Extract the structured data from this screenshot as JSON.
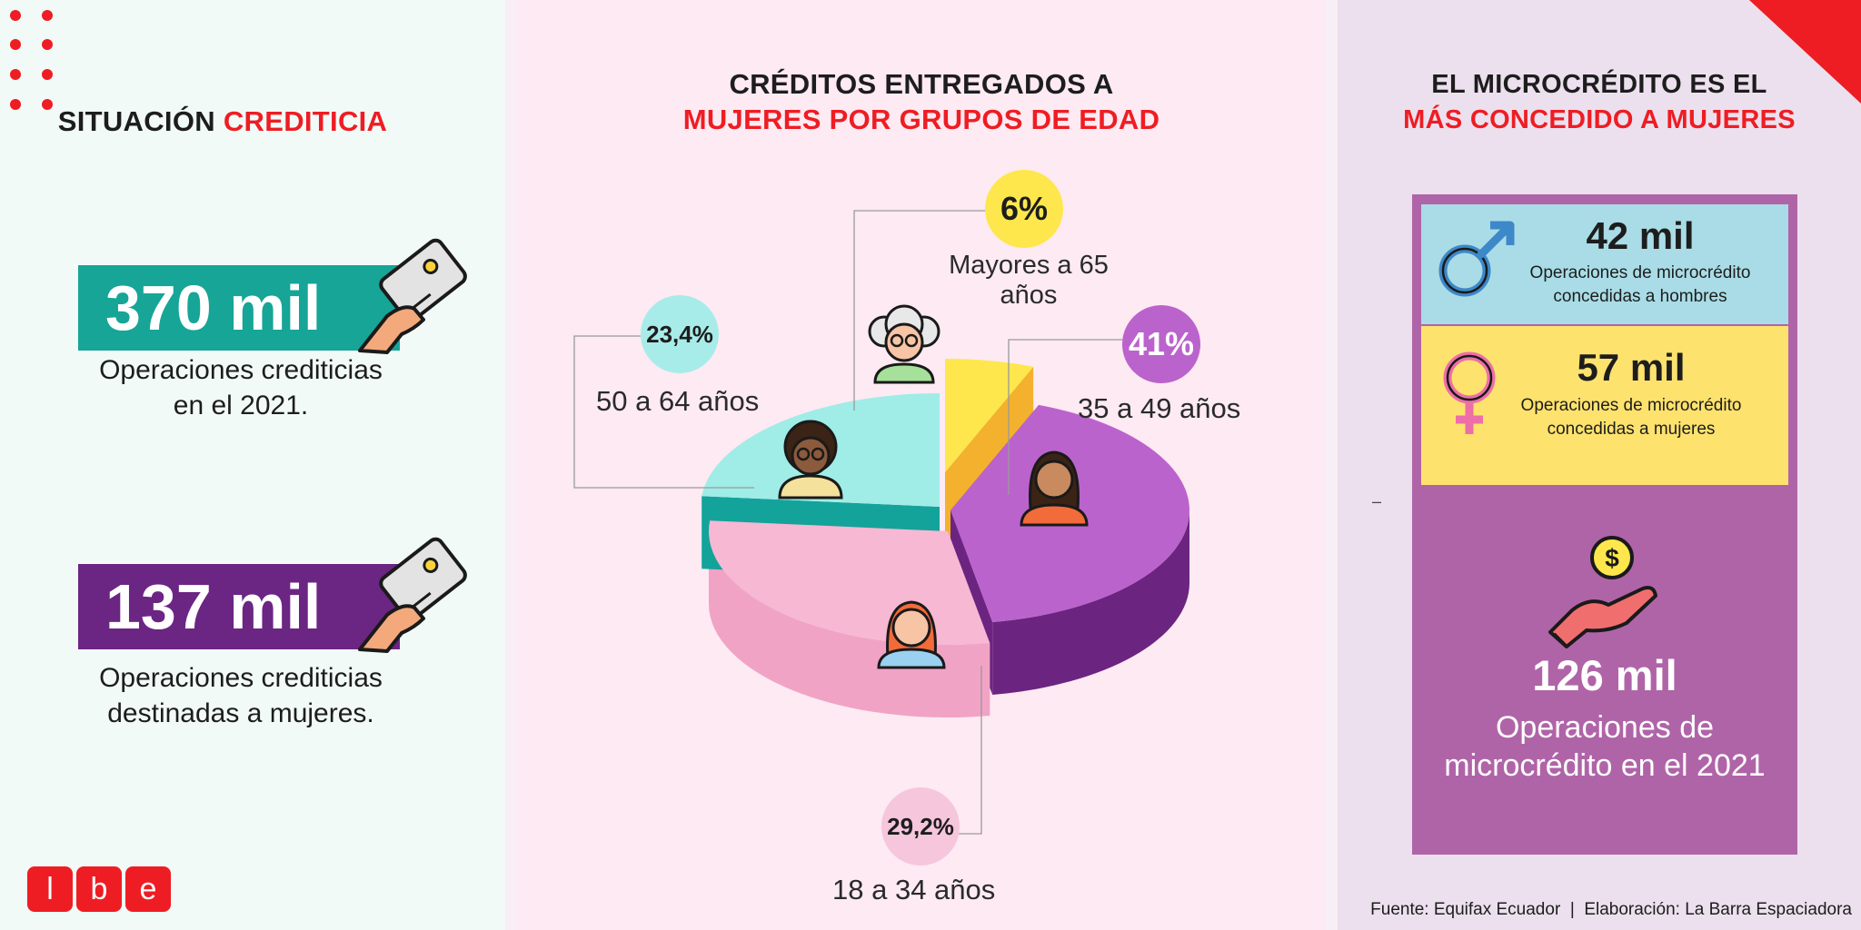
{
  "left": {
    "title_black": "SITUACIÓN",
    "title_red": "CREDITICIA",
    "stat1": {
      "value": "370 mil",
      "caption_line1": "Operaciones crediticias",
      "caption_line2": "en el 2021."
    },
    "stat2": {
      "value": "137 mil",
      "caption_line1": "Operaciones crediticias",
      "caption_line2": "destinadas a mujeres."
    },
    "logo_letters": [
      "l",
      "b",
      "e"
    ]
  },
  "center": {
    "title_line1": "CRÉDITOS ENTREGADOS A",
    "title_line2": "MUJERES POR GRUPOS DE EDAD"
  },
  "chart_data": {
    "type": "pie",
    "title": "CRÉDITOS ENTREGADOS A MUJERES POR GRUPOS DE EDAD",
    "categories": [
      "Mayores a 65 años",
      "35 a 49 años",
      "18 a 34 años",
      "50 a 64 años"
    ],
    "values": [
      6,
      41,
      29.2,
      23.4
    ],
    "value_labels": [
      "6%",
      "41%",
      "29,2%",
      "23,4%"
    ],
    "colors": [
      "#fde74c",
      "#bb63cc",
      "#f6b8d3",
      "#a0ece7"
    ],
    "side_colors": [
      "#f4b12d",
      "#6b2580",
      "#f1a3c6",
      "#14a39a"
    ]
  },
  "right": {
    "title_line1": "EL MICROCRÉDITO ES EL",
    "title_line2": "MÁS CONCEDIDO A MUJERES",
    "men": {
      "value": "42 mil",
      "caption_line1": "Operaciones de microcrédito",
      "caption_line2": "concedidas a hombres"
    },
    "women": {
      "value": "57 mil",
      "caption_line1": "Operaciones de microcrédito",
      "caption_line2": "concedidas a mujeres"
    },
    "total": {
      "value": "126 mil",
      "caption_line1": "Operaciones de",
      "caption_line2": "microcrédito en el 2021"
    },
    "dash": "–",
    "source": "Fuente: Equifax Ecuador  |  Elaboración: La Barra Espaciadora"
  },
  "colors": {
    "accent_red": "#ee1d23",
    "teal": "#16a596",
    "purple": "#6b2583",
    "box_purple": "#b064a8",
    "box_blue": "#a9dce6",
    "box_yellow": "#fde26e"
  }
}
